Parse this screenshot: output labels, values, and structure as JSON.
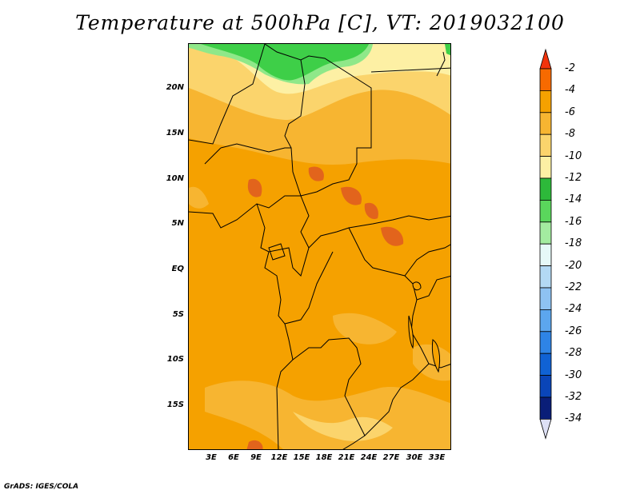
{
  "title": "Temperature at 500hPa [C], VT: 2019032100",
  "footer": "GrADS: IGES/COLA",
  "map": {
    "region": "Central Africa",
    "lat_ticks": [
      "20N",
      "15N",
      "10N",
      "5N",
      "EQ",
      "5S",
      "10S",
      "15S"
    ],
    "lon_ticks": [
      "3E",
      "6E",
      "9E",
      "12E",
      "15E",
      "18E",
      "21E",
      "24E",
      "27E",
      "30E",
      "33E"
    ],
    "fill_colors": {
      "warmest": "#e2641c",
      "warm": "#f5a100",
      "mid": "#f7b531",
      "cool": "#fbd46c",
      "cooler": "#fdf0a4",
      "green": "#3ecf48",
      "lightgreen": "#8fe889"
    }
  },
  "colorbar": {
    "labels": [
      "-2",
      "-4",
      "-6",
      "-8",
      "-10",
      "-12",
      "-14",
      "-16",
      "-18",
      "-20",
      "-22",
      "-24",
      "-26",
      "-28",
      "-30",
      "-32",
      "-34"
    ],
    "colors": [
      "#f2330c",
      "#f76a00",
      "#f5a100",
      "#f7b531",
      "#fbd46c",
      "#fdf0a4",
      "#2db93a",
      "#5ad65c",
      "#a3eca0",
      "#e6f9f8",
      "#b3d9f4",
      "#8ec2f2",
      "#5ca6ee",
      "#2e84e6",
      "#1062d4",
      "#0a45b8",
      "#0a1e78",
      "#dde0f5"
    ]
  }
}
